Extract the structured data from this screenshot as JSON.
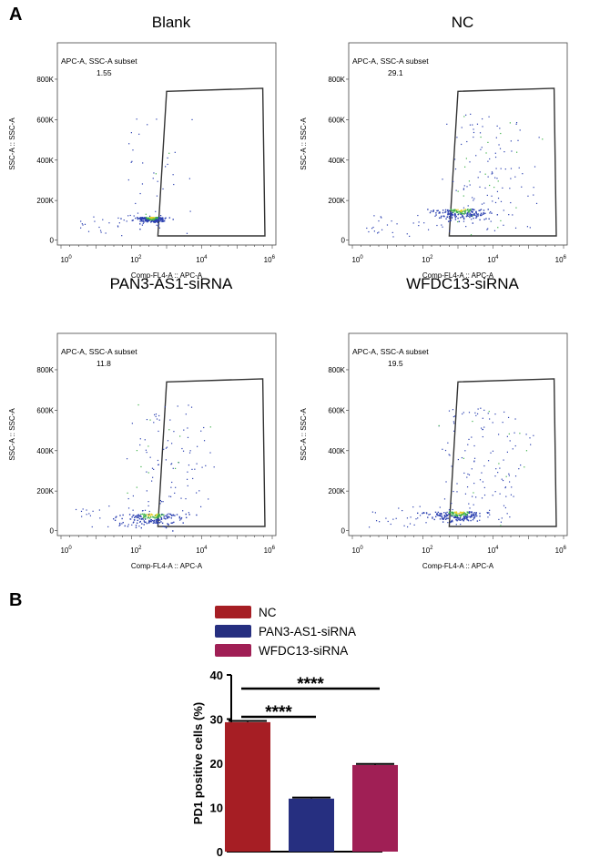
{
  "panel_labels": {
    "a": "A",
    "b": "B"
  },
  "flow": {
    "x_axis_label": "Comp-FL4-A :: APC-A",
    "y_axis_label": "SSC-A :: SSC-A",
    "x_ticks": [
      "10",
      "10",
      "10",
      "10"
    ],
    "x_tick_exponents": [
      "0",
      "2",
      "4",
      "6"
    ],
    "y_ticks": [
      "800K",
      "600K",
      "400K",
      "200K",
      "0"
    ],
    "plots": [
      {
        "title": "Blank",
        "gate_name": "APC-A, SSC-A subset",
        "gate_value": "1.55"
      },
      {
        "title": "NC",
        "gate_name": "APC-A, SSC-A subset",
        "gate_value": "29.1"
      },
      {
        "title": "PAN3-AS1-siRNA",
        "gate_name": "APC-A, SSC-A subset",
        "gate_value": "11.8"
      },
      {
        "title": "WFDC13-siRNA",
        "gate_name": "APC-A, SSC-A subset",
        "gate_value": "19.5"
      }
    ]
  },
  "chart_data": [
    {
      "type": "bar",
      "categories": [
        "NC",
        "PAN3-AS1-siRNA",
        "WFDC13-siRNA"
      ],
      "values": [
        29.3,
        12.0,
        19.6
      ],
      "errors": [
        0.3,
        0.25,
        0.25
      ],
      "colors": [
        "#a61e24",
        "#262f80",
        "#a01f55"
      ],
      "ylabel": "PD1 positive cells (%)",
      "ylim": [
        0,
        40
      ],
      "yticks": [
        0,
        10,
        20,
        30,
        40
      ],
      "legend": [
        "NC",
        "PAN3-AS1-siRNA",
        "WFDC13-siRNA"
      ],
      "legend_placement": "top",
      "annotations": [
        {
          "from": "NC",
          "to": "PAN3-AS1-siRNA",
          "label": "****"
        },
        {
          "from": "NC",
          "to": "WFDC13-siRNA",
          "label": "****"
        }
      ]
    }
  ]
}
